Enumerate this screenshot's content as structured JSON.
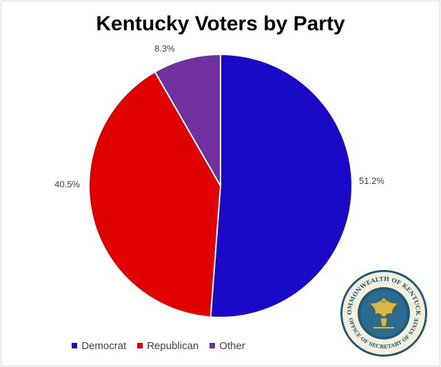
{
  "chart_data": {
    "type": "pie",
    "title": "Kentucky Voters by Party",
    "categories": [
      "Democrat",
      "Republican",
      "Other"
    ],
    "values": [
      51.2,
      40.5,
      8.3
    ],
    "labels": [
      "51.2%",
      "40.5%",
      "8.3%"
    ],
    "colors": [
      "#1a0ac8",
      "#e00000",
      "#7030a0"
    ],
    "legend": "bottom",
    "start_angle": "12 o'clock, clockwise"
  },
  "seal": {
    "name": "seal-icon",
    "text_top": "COMMONWEALTH OF KENTUCKY",
    "text_bottom": "OFFICE OF SECRETARY OF STATE"
  }
}
